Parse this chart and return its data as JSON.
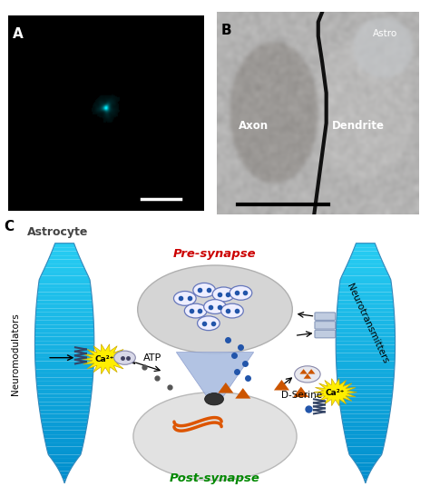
{
  "panel_A_label": "A",
  "panel_B_label": "B",
  "panel_C_label": "C",
  "panel_A_bg": "#000000",
  "panel_C_bg": "#ffffff",
  "atp_label": "ATP",
  "d_serine_label": "D-Serine",
  "neurotransmitters_label": "Neurotransmitters",
  "neuromodulators_label": "Neuromodulators",
  "presynapse_label": "Pre-synapse",
  "postsynapse_label": "Post-synapse",
  "astrocyte_label": "Astrocyte",
  "ca_label": "Ca²⁺",
  "axon_label": "Axon",
  "dendrite_label": "Dendrite",
  "astro_label": "Astro",
  "orange_triangle_color": "#cc5500",
  "blue_dot_color": "#2255aa",
  "vesicle_color": "#eeeeff",
  "vesicle_border": "#6677bb"
}
